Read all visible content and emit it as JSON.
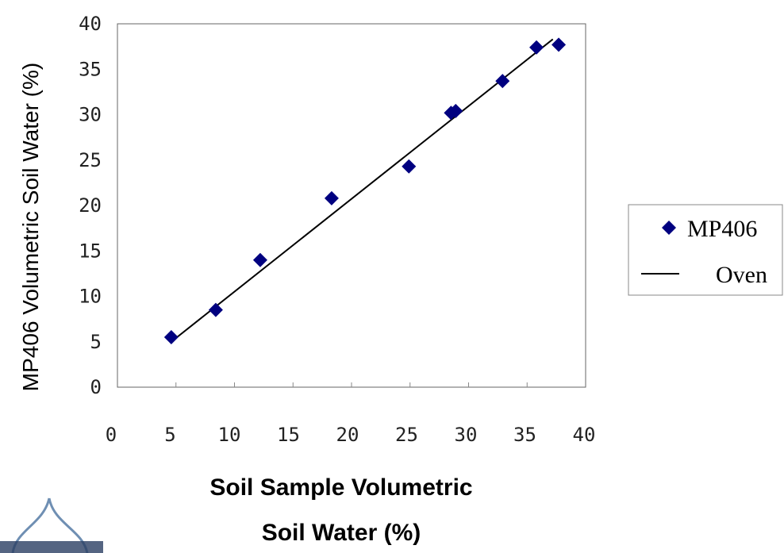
{
  "chart_data": {
    "type": "scatter",
    "title": "",
    "xlabel_lines": [
      "Soil Sample Volumetric",
      "Soil Water (%)"
    ],
    "ylabel": "MP406 Volumetric Soil Water (%)",
    "xlim": [
      0,
      40
    ],
    "ylim": [
      0,
      40
    ],
    "xticks": [
      "0",
      "5",
      "10",
      "15",
      "20",
      "25",
      "30",
      "35",
      "40"
    ],
    "yticks": [
      "0",
      "5",
      "10",
      "15",
      "20",
      "25",
      "30",
      "35",
      "40"
    ],
    "grid": false,
    "legend_position": "right",
    "series": [
      {
        "name": "MP406",
        "kind": "scatter",
        "marker": "diamond",
        "color": "#000080",
        "points": [
          {
            "x": 4.6,
            "y": 5.5
          },
          {
            "x": 8.4,
            "y": 8.5
          },
          {
            "x": 12.2,
            "y": 14.0
          },
          {
            "x": 18.3,
            "y": 20.8
          },
          {
            "x": 24.9,
            "y": 24.3
          },
          {
            "x": 28.5,
            "y": 30.2
          },
          {
            "x": 28.9,
            "y": 30.4
          },
          {
            "x": 32.9,
            "y": 33.7
          },
          {
            "x": 35.8,
            "y": 37.4
          },
          {
            "x": 37.7,
            "y": 37.7
          }
        ]
      },
      {
        "name": "Oven",
        "kind": "line",
        "color": "#000000",
        "points": [
          {
            "x": 4.6,
            "y": 5.0
          },
          {
            "x": 37.2,
            "y": 38.3
          }
        ]
      }
    ]
  }
}
